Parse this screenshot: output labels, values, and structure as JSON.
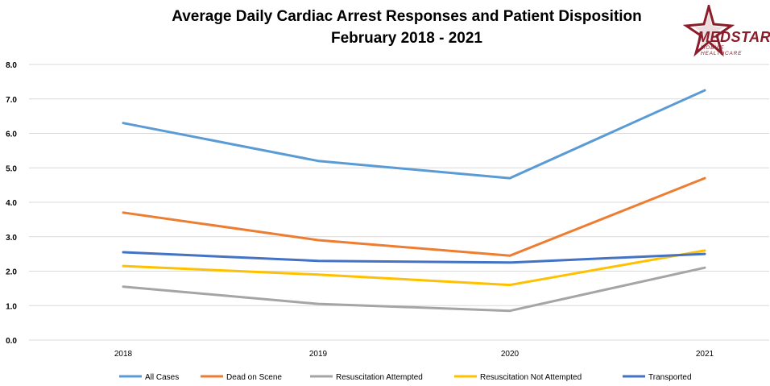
{
  "chart_data": {
    "type": "line",
    "title": "Average Daily Cardiac Arrest Responses and Patient Disposition",
    "subtitle": "February 2018 - 2021",
    "categories": [
      "2018",
      "2019",
      "2020",
      "2021"
    ],
    "ylim": [
      0,
      8
    ],
    "yticks": [
      "0.0",
      "1.0",
      "2.0",
      "3.0",
      "4.0",
      "5.0",
      "6.0",
      "7.0",
      "8.0"
    ],
    "grid": true,
    "legend_position": "bottom",
    "series": [
      {
        "name": "All Cases",
        "color": "#5b9bd5",
        "values": [
          6.3,
          5.2,
          4.7,
          7.25
        ]
      },
      {
        "name": "Dead on Scene",
        "color": "#ed7d31",
        "values": [
          3.7,
          2.9,
          2.45,
          4.7
        ]
      },
      {
        "name": "Resuscitation Attempted",
        "color": "#a5a5a5",
        "values": [
          1.55,
          1.05,
          0.85,
          2.1
        ]
      },
      {
        "name": "Resuscitation Not Attempted",
        "color": "#ffc000",
        "values": [
          2.15,
          1.9,
          1.6,
          2.6
        ]
      },
      {
        "name": "Transported",
        "color": "#4472c4",
        "values": [
          2.55,
          2.3,
          2.25,
          2.5
        ]
      }
    ]
  },
  "logo": {
    "name": "MEDSTAR",
    "tagline": "MOBILE HEALTHCARE",
    "color": "#8b1c2a"
  }
}
